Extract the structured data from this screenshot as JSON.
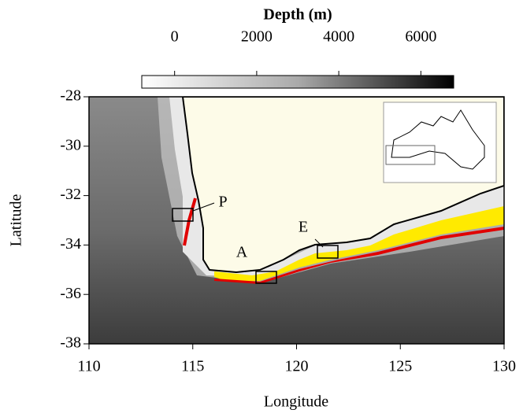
{
  "chart_data": {
    "type": "map",
    "title": "Depth (m)",
    "clim": [
      -800,
      6800
    ],
    "cticks": [
      0,
      2000,
      4000,
      6000
    ],
    "xlabel": "Longitude",
    "ylabel": "Latitude",
    "xlim": [
      110,
      130
    ],
    "ylim": [
      -38,
      -28
    ],
    "xticks": [
      110,
      115,
      120,
      125,
      130
    ],
    "yticks": [
      -28,
      -30,
      -32,
      -34,
      -36,
      -38
    ],
    "annotations": [
      "P",
      "A",
      "E"
    ]
  }
}
